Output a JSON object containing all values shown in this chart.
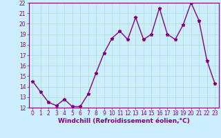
{
  "x": [
    0,
    1,
    2,
    3,
    4,
    5,
    6,
    7,
    8,
    9,
    10,
    11,
    12,
    13,
    14,
    15,
    16,
    17,
    18,
    19,
    20,
    21,
    22,
    23
  ],
  "y": [
    14.5,
    13.5,
    12.5,
    12.2,
    12.8,
    12.1,
    12.1,
    13.3,
    15.3,
    17.2,
    18.6,
    19.3,
    18.5,
    20.6,
    18.5,
    19.0,
    21.5,
    19.0,
    18.5,
    19.9,
    22.0,
    20.3,
    16.5,
    14.3
  ],
  "color": "#800080",
  "bg_color": "#cceeff",
  "grid_color": "#aaddcc",
  "xlabel": "Windchill (Refroidissement éolien,°C)",
  "ylim": [
    12,
    22
  ],
  "xlim": [
    -0.5,
    23.5
  ],
  "yticks": [
    12,
    13,
    14,
    15,
    16,
    17,
    18,
    19,
    20,
    21,
    22
  ],
  "xticks": [
    0,
    1,
    2,
    3,
    4,
    5,
    6,
    7,
    8,
    9,
    10,
    11,
    12,
    13,
    14,
    15,
    16,
    17,
    18,
    19,
    20,
    21,
    22,
    23
  ],
  "marker": "*",
  "linewidth": 1.0,
  "markersize": 3.5,
  "xlabel_fontsize": 6.5,
  "tick_fontsize": 5.5
}
